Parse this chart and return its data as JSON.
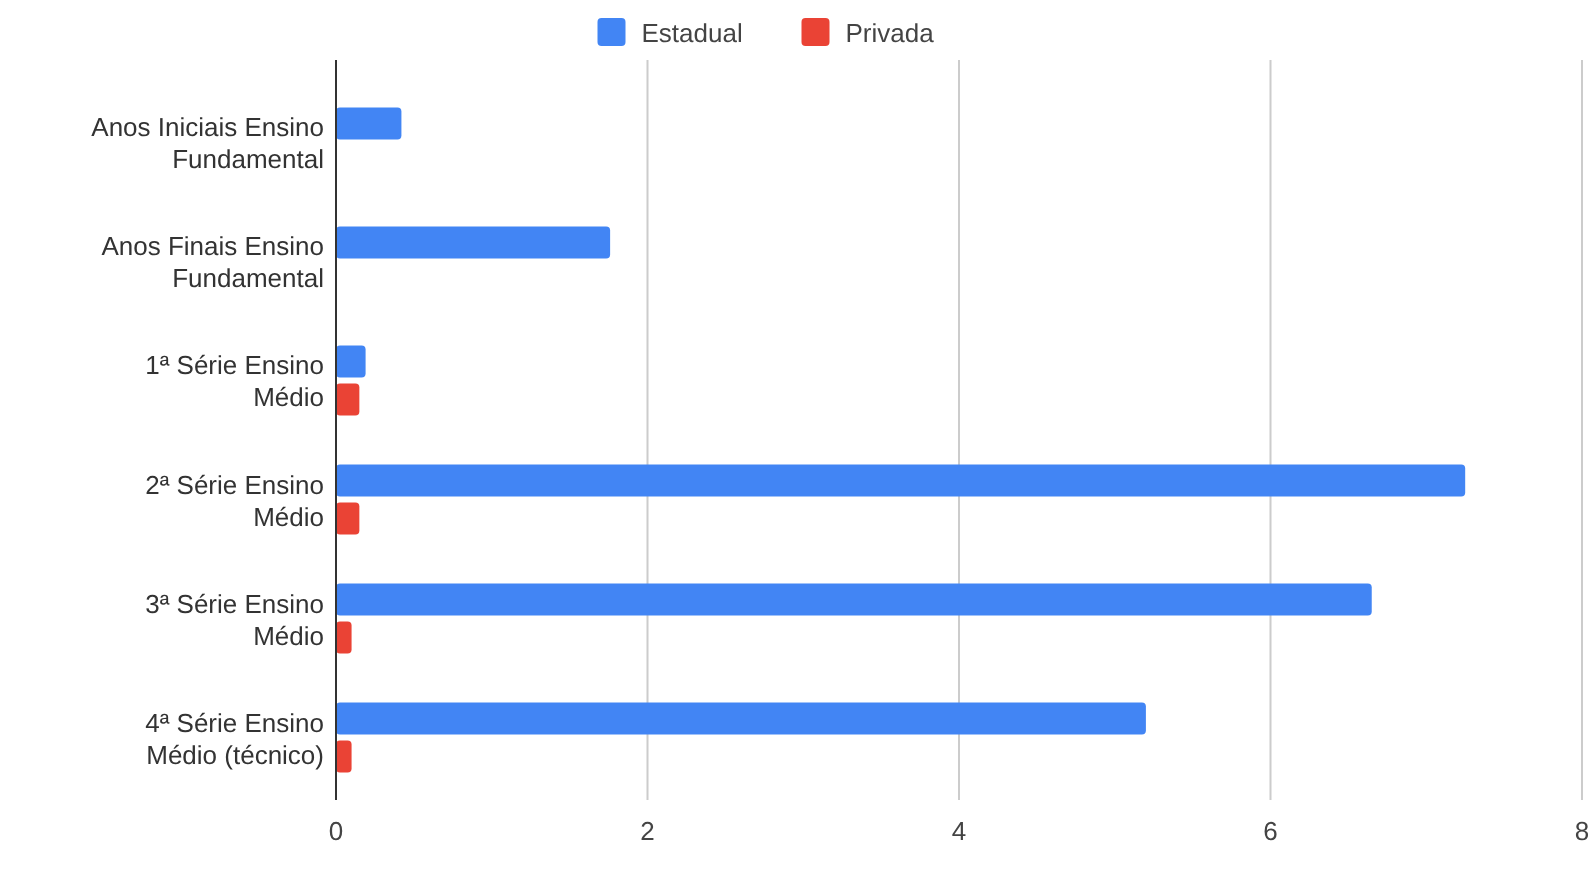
{
  "chart_data": {
    "type": "bar",
    "orientation": "horizontal",
    "categories": [
      "Anos Iniciais Ensino Fundamental",
      "Anos Finais Ensino Fundamental",
      "1ª Série Ensino Médio",
      "2ª Série Ensino Médio",
      "3ª Série Ensino Médio",
      "4ª Série Ensino Médio (técnico)"
    ],
    "series": [
      {
        "name": "Estadual",
        "color": "#4285f4",
        "values": [
          0.42,
          1.76,
          0.19,
          7.25,
          6.65,
          5.2
        ]
      },
      {
        "name": "Privada",
        "color": "#ea4335",
        "values": [
          null,
          null,
          0.15,
          0.15,
          0.1,
          0.1
        ]
      }
    ],
    "xlim": [
      0,
      8
    ],
    "xticks": [
      0,
      2,
      4,
      6,
      8
    ],
    "grid": "x",
    "legend": "top"
  }
}
